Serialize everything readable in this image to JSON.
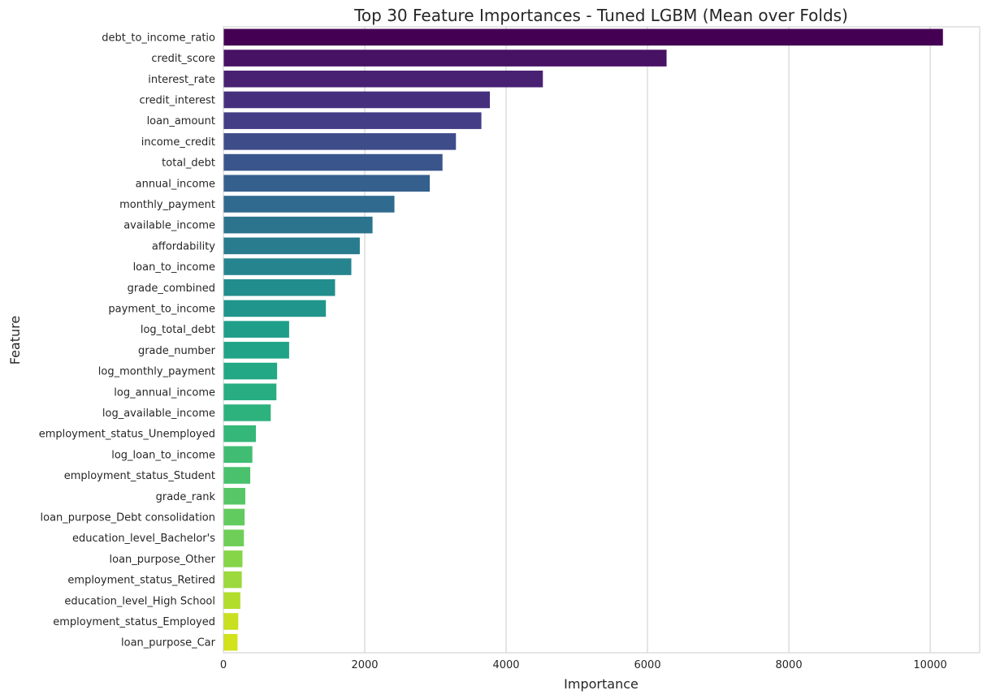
{
  "chart_data": {
    "type": "bar",
    "orientation": "horizontal",
    "title": "Top 30 Feature Importances - Tuned LGBM (Mean over Folds)",
    "xlabel": "Importance",
    "ylabel": "Feature",
    "xlim": [
      0,
      10700
    ],
    "xticks": [
      0,
      2000,
      4000,
      6000,
      8000,
      10000
    ],
    "xtick_labels": [
      "0",
      "2000",
      "4000",
      "6000",
      "8000",
      "10000"
    ],
    "grid": "vertical",
    "palette": "viridis",
    "categories": [
      "debt_to_income_ratio",
      "credit_score",
      "interest_rate",
      "credit_interest",
      "loan_amount",
      "income_credit",
      "total_debt",
      "annual_income",
      "monthly_payment",
      "available_income",
      "affordability",
      "loan_to_income",
      "grade_combined",
      "payment_to_income",
      "log_total_debt",
      "grade_number",
      "log_monthly_payment",
      "log_annual_income",
      "log_available_income",
      "employment_status_Unemployed",
      "log_loan_to_income",
      "employment_status_Student",
      "grade_rank",
      "loan_purpose_Debt consolidation",
      "education_level_Bachelor's",
      "loan_purpose_Other",
      "employment_status_Retired",
      "education_level_High School",
      "employment_status_Employed",
      "loan_purpose_Car"
    ],
    "values": [
      10180,
      6270,
      4520,
      3770,
      3650,
      3290,
      3100,
      2920,
      2420,
      2110,
      1930,
      1810,
      1580,
      1450,
      930,
      930,
      760,
      750,
      670,
      460,
      410,
      380,
      310,
      300,
      290,
      270,
      260,
      240,
      210,
      200
    ],
    "colors": [
      "#440154",
      "#471164",
      "#482173",
      "#46307e",
      "#433e85",
      "#3e4c8a",
      "#39558c",
      "#35608d",
      "#306a8e",
      "#2c738e",
      "#297b8e",
      "#26848e",
      "#228d8d",
      "#1f958b",
      "#1f9e89",
      "#20a386",
      "#22a884",
      "#27ad81",
      "#2db27d",
      "#35b779",
      "#40bd72",
      "#4ac16d",
      "#56c667",
      "#62cb5f",
      "#6ece58",
      "#86d549",
      "#9bd93c",
      "#b2dd2c",
      "#c8e020",
      "#d2e21b"
    ]
  }
}
